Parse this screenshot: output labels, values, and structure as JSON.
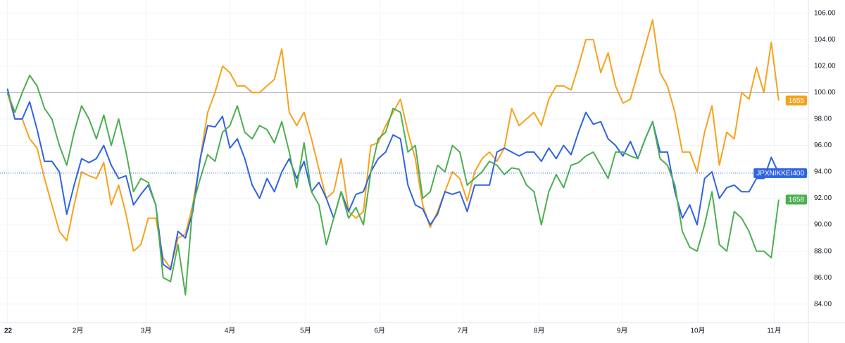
{
  "chart_data": {
    "type": "line",
    "x": [
      0,
      1,
      2,
      3,
      4,
      5,
      6,
      7,
      8,
      9,
      10,
      11,
      12,
      13,
      14,
      15,
      16,
      17,
      18,
      19,
      20,
      21,
      22,
      23,
      24,
      25,
      26,
      27,
      28,
      29,
      30,
      31,
      32,
      33,
      34,
      35,
      36,
      37,
      38,
      39,
      40,
      41,
      42,
      43,
      44,
      45,
      46,
      47,
      48,
      49,
      50,
      51,
      52,
      53,
      54,
      55,
      56,
      57,
      58,
      59,
      60,
      61,
      62,
      63,
      64,
      65,
      66,
      67,
      68,
      69,
      70,
      71,
      72,
      73,
      74,
      75,
      76,
      77,
      78,
      79,
      80,
      81,
      82,
      83,
      84,
      85,
      86,
      87,
      88,
      89,
      90,
      91,
      92,
      93,
      94,
      95,
      96,
      97,
      98,
      99,
      100,
      101,
      102,
      103,
      104
    ],
    "series": [
      {
        "name": "1655",
        "color": "#f7a21b",
        "values": [
          100,
          98,
          98,
          96.5,
          95.8,
          93.5,
          91.5,
          89.5,
          88.8,
          91.5,
          94,
          93.7,
          93.5,
          94.7,
          91.5,
          93,
          90.8,
          88,
          88.5,
          90.5,
          90.5,
          87.5,
          86.7,
          89,
          89.3,
          91.5,
          95,
          98.5,
          100,
          102,
          101.5,
          100.5,
          100.5,
          100,
          100,
          100.5,
          101,
          103.3,
          98.5,
          97.5,
          98.5,
          96.5,
          94.2,
          92,
          92.5,
          95,
          91,
          90.5,
          91,
          96,
          96.2,
          97.5,
          98.5,
          99.5,
          97,
          95,
          91.5,
          89.8,
          91,
          92.5,
          94,
          93.5,
          91.8,
          94,
          95,
          95.5,
          94.8,
          95.8,
          98.8,
          97.5,
          98,
          98.5,
          97.5,
          99.5,
          100.5,
          100.5,
          100.2,
          102,
          104,
          104,
          101.5,
          103,
          100.5,
          99.2,
          99.5,
          101.5,
          103.5,
          105.5,
          101.5,
          100.5,
          98.5,
          95.5,
          95.5,
          94,
          97,
          99,
          94.5,
          97,
          96.5,
          100,
          99.5,
          101.9,
          100,
          103.8,
          99.4
        ]
      },
      {
        "name": "JPXNIKKEI400",
        "color": "#2f63e4",
        "values": [
          100.3,
          98,
          98,
          99.3,
          97.2,
          94.8,
          94.8,
          94,
          90.8,
          93,
          95,
          94.7,
          95,
          96,
          94.5,
          93.5,
          93.7,
          91.5,
          92.3,
          93,
          91.5,
          87,
          86.6,
          89.5,
          89,
          91,
          95,
          97.5,
          97.4,
          98.2,
          95.8,
          96.5,
          95,
          93,
          92,
          93.5,
          92.5,
          94,
          95,
          93.5,
          94.8,
          92.5,
          93.2,
          92,
          90.5,
          92.5,
          91,
          92.3,
          92.5,
          94,
          95,
          95.5,
          96.8,
          96.5,
          93,
          91.5,
          91.2,
          90,
          90.8,
          92.5,
          92.3,
          92.5,
          91,
          93,
          93,
          93,
          95.5,
          95.8,
          95.5,
          95.2,
          95.5,
          95.5,
          94.8,
          95.8,
          95,
          96,
          95.3,
          97,
          98.5,
          97.6,
          97.8,
          96.5,
          96,
          95.2,
          96.3,
          95,
          96.5,
          97.8,
          95.5,
          95.5,
          92.5,
          90.5,
          91.5,
          90,
          93.5,
          94,
          92,
          92.8,
          93,
          92.5,
          92.5,
          93.5,
          93.5,
          95.1,
          93.9
        ]
      },
      {
        "name": "1658",
        "color": "#4caf50",
        "values": [
          100,
          98.5,
          100,
          101.3,
          100.5,
          98.8,
          98,
          96,
          94.5,
          97,
          99,
          98,
          96.5,
          98.3,
          96,
          98,
          95.5,
          92.5,
          93.5,
          93.2,
          91.5,
          86,
          85.7,
          88.5,
          84.7,
          91.5,
          93.5,
          95.3,
          94.8,
          97,
          97.5,
          99,
          97,
          96.5,
          97.5,
          97.2,
          96.2,
          97.8,
          95.5,
          92.8,
          96.2,
          92.5,
          91.5,
          88.5,
          90.5,
          92.5,
          90.5,
          91.3,
          90,
          94,
          96.5,
          97,
          98.8,
          98.5,
          95.5,
          96,
          92,
          92.5,
          94.5,
          94,
          96,
          95.5,
          93,
          93.5,
          94,
          94.8,
          94.5,
          93.8,
          94.3,
          94.2,
          93,
          92.5,
          90,
          92.5,
          93.8,
          92.8,
          94.5,
          94.7,
          95.2,
          95.5,
          94.5,
          93.5,
          95.5,
          95.5,
          95.2,
          95,
          96.5,
          97.8,
          95,
          94.5,
          93,
          89.5,
          88.3,
          88,
          90,
          92.5,
          88.5,
          88,
          91,
          90.5,
          89.5,
          88,
          88,
          87.5,
          91.9
        ]
      }
    ],
    "reference_line": 100,
    "xlim": [
      -1,
      108
    ],
    "xticks": [
      {
        "value": 0,
        "label": "22"
      },
      {
        "value": 9.5,
        "label": "2月"
      },
      {
        "value": 18.7,
        "label": "3月"
      },
      {
        "value": 30,
        "label": "4月"
      },
      {
        "value": 40.2,
        "label": "5月"
      },
      {
        "value": 50.2,
        "label": "6月"
      },
      {
        "value": 61.4,
        "label": "7月"
      },
      {
        "value": 71.7,
        "label": "8月"
      },
      {
        "value": 82.9,
        "label": "9月"
      },
      {
        "value": 93.1,
        "label": "10月"
      },
      {
        "value": 103.4,
        "label": "11月"
      }
    ],
    "ylim": [
      82.6,
      107
    ],
    "yticks": [
      {
        "value": 84,
        "label": "84.00"
      },
      {
        "value": 86,
        "label": "86.00"
      },
      {
        "value": 88,
        "label": "88.00"
      },
      {
        "value": 90,
        "label": "90.00"
      },
      {
        "value": 92,
        "label": "92.00"
      },
      {
        "value": 94,
        "label": "94.00"
      },
      {
        "value": 96,
        "label": "96.00"
      },
      {
        "value": 98,
        "label": "98.00"
      },
      {
        "value": 100,
        "label": "100.00"
      },
      {
        "value": 102,
        "label": "102.00"
      },
      {
        "value": 104,
        "label": "104.00"
      },
      {
        "value": 106,
        "label": "106.00"
      }
    ],
    "grid": true
  }
}
